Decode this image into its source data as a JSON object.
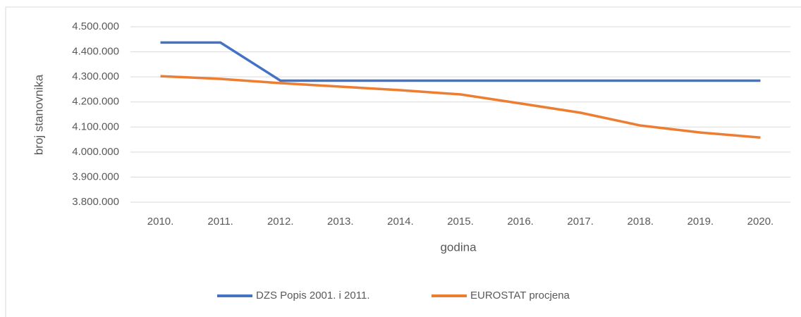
{
  "chart_data": {
    "type": "line",
    "x_label": "godina",
    "y_label": "broj stanovnika",
    "categories": [
      "2010.",
      "2011.",
      "2012.",
      "2013.",
      "2014.",
      "2015.",
      "2016.",
      "2017.",
      "2018.",
      "2019.",
      "2020."
    ],
    "series": [
      {
        "name": "DZS Popis 2001. i 2011.",
        "color": "#4472c4",
        "values": [
          4437000,
          4437000,
          4285000,
          4285000,
          4285000,
          4285000,
          4285000,
          4285000,
          4285000,
          4285000,
          4285000
        ]
      },
      {
        "name": "EUROSTAT procjena",
        "color": "#ed7d31",
        "values": [
          4303000,
          4292000,
          4275000,
          4261000,
          4247000,
          4230000,
          4194000,
          4157000,
          4106000,
          4078000,
          4058000
        ]
      }
    ],
    "ylim": [
      3800000,
      4500000
    ],
    "yticks": [
      {
        "value": 3800000,
        "label": "3.800.000"
      },
      {
        "value": 3900000,
        "label": "3.900.000"
      },
      {
        "value": 4000000,
        "label": "4.000.000"
      },
      {
        "value": 4100000,
        "label": "4.100.000"
      },
      {
        "value": 4200000,
        "label": "4.200.000"
      },
      {
        "value": 4300000,
        "label": "4.300.000"
      },
      {
        "value": 4400000,
        "label": "4.400.000"
      },
      {
        "value": 4500000,
        "label": "4.500.000"
      }
    ],
    "grid": true,
    "legend": "bottom"
  }
}
